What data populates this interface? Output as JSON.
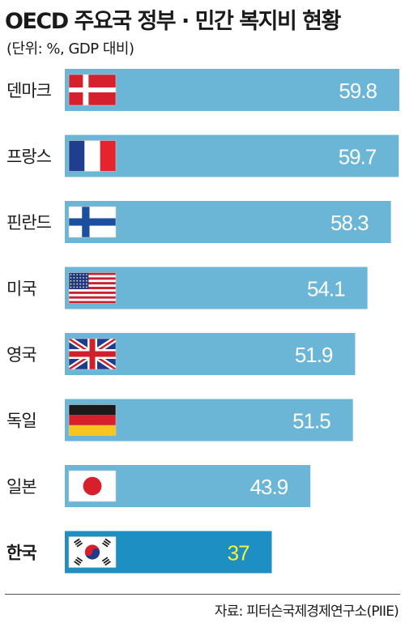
{
  "header": {
    "title": "OECD 주요국 정부 · 민간 복지비 현황",
    "subtitle": "(단위: %, GDP 대비)"
  },
  "footer": {
    "source": "자료: 피터슨국제경제연구소(PIIE)"
  },
  "colors": {
    "bar": "#6bb6d6",
    "highlight_bar": "#1e8fc3",
    "value_text": "#ffffff",
    "highlight_value_text": "#f6f23a"
  },
  "chart_data": {
    "type": "bar",
    "orientation": "horizontal",
    "title": "OECD 주요국 정부 · 민간 복지비 현황",
    "subtitle": "(단위: %, GDP 대비)",
    "unit": "%",
    "categories": [
      "덴마크",
      "프랑스",
      "핀란드",
      "미국",
      "영국",
      "독일",
      "일본",
      "한국"
    ],
    "values": [
      59.8,
      59.7,
      58.3,
      54.1,
      51.9,
      51.5,
      43.9,
      37
    ],
    "value_labels": [
      "59.8",
      "59.7",
      "58.3",
      "54.1",
      "51.9",
      "51.5",
      "43.9",
      "37"
    ],
    "flags": [
      "denmark-flag",
      "france-flag",
      "finland-flag",
      "usa-flag",
      "uk-flag",
      "germany-flag",
      "japan-flag",
      "korea-flag"
    ],
    "highlight": "한국",
    "xlim": [
      0,
      59.8
    ],
    "grid": false,
    "legend": "none"
  }
}
